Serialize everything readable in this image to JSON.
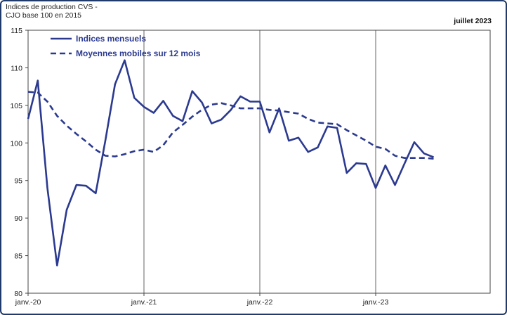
{
  "chart_data": {
    "type": "line",
    "ylabel": "Indices de production CVS -\nCJO base 100 en 2015",
    "date_badge": "juillet 2023",
    "ylim": [
      80,
      115
    ],
    "y_ticks": [
      80,
      85,
      90,
      95,
      100,
      105,
      110,
      115
    ],
    "x_ticks": [
      {
        "index": 0,
        "label": "janv.-20"
      },
      {
        "index": 12,
        "label": "janv.-21"
      },
      {
        "index": 24,
        "label": "janv.-22"
      },
      {
        "index": 36,
        "label": "janv.-23"
      }
    ],
    "grid": "vertical-at-january",
    "legend_position": "top-left",
    "x": [
      "2020-01",
      "2020-02",
      "2020-03",
      "2020-04",
      "2020-05",
      "2020-06",
      "2020-07",
      "2020-08",
      "2020-09",
      "2020-10",
      "2020-11",
      "2020-12",
      "2021-01",
      "2021-02",
      "2021-03",
      "2021-04",
      "2021-05",
      "2021-06",
      "2021-07",
      "2021-08",
      "2021-09",
      "2021-10",
      "2021-11",
      "2021-12",
      "2022-01",
      "2022-02",
      "2022-03",
      "2022-04",
      "2022-05",
      "2022-06",
      "2022-07",
      "2022-08",
      "2022-09",
      "2022-10",
      "2022-11",
      "2022-12",
      "2023-01",
      "2023-02",
      "2023-03",
      "2023-04",
      "2023-05",
      "2023-06",
      "2023-07"
    ],
    "series": [
      {
        "name": "Indices mensuels",
        "style": "solid",
        "color": "#2b3a8f",
        "values": [
          103.2,
          108.3,
          94.0,
          83.7,
          91.1,
          94.4,
          94.3,
          93.3,
          100.3,
          107.8,
          111.0,
          106.0,
          104.8,
          104.0,
          105.6,
          103.6,
          102.9,
          106.9,
          105.4,
          102.6,
          103.1,
          104.4,
          106.2,
          105.5,
          105.5,
          101.4,
          104.6,
          100.3,
          100.7,
          98.8,
          99.4,
          102.2,
          102.0,
          96.0,
          97.3,
          97.2,
          94.0,
          97.0,
          94.4,
          97.3,
          100.1,
          98.6,
          98.1
        ]
      },
      {
        "name": "Moyennes mobiles sur 12 mois",
        "style": "dashed",
        "color": "#2b3a8f",
        "values": [
          106.8,
          106.7,
          105.5,
          103.6,
          102.3,
          101.2,
          100.2,
          99.1,
          98.3,
          98.2,
          98.5,
          98.9,
          99.1,
          98.8,
          99.7,
          101.4,
          102.4,
          103.5,
          104.4,
          105.1,
          105.3,
          105.0,
          104.6,
          104.6,
          104.6,
          104.4,
          104.3,
          104.1,
          103.9,
          103.2,
          102.7,
          102.6,
          102.5,
          101.7,
          101.0,
          100.3,
          99.5,
          99.2,
          98.3,
          98.0,
          98.0,
          98.0,
          97.9
        ]
      }
    ]
  }
}
